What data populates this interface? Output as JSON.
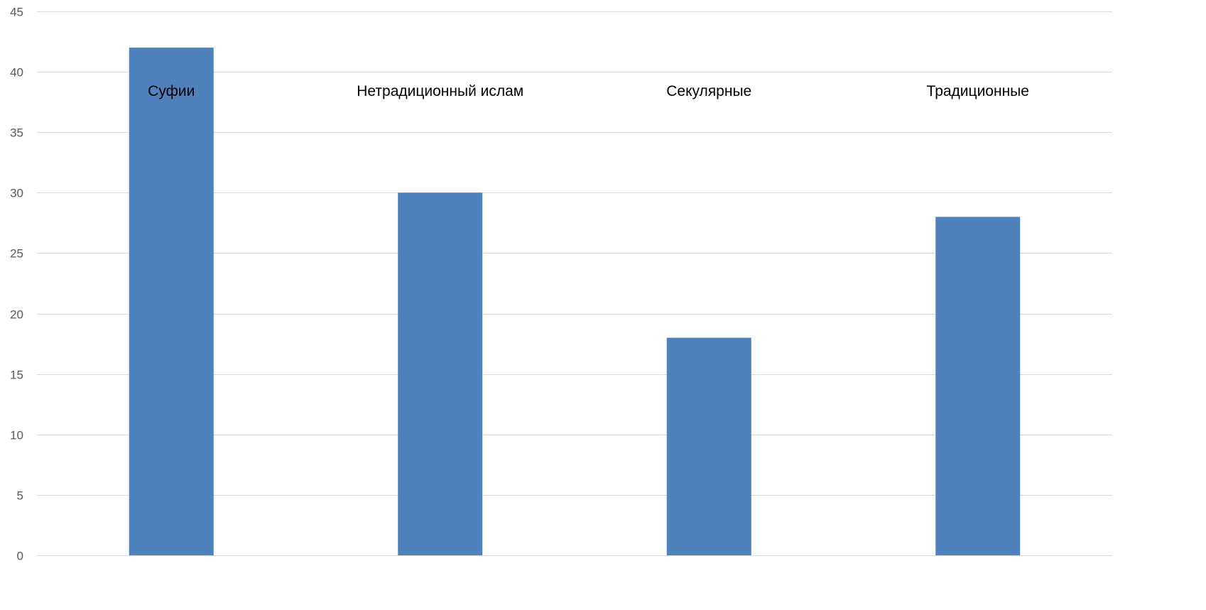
{
  "chart_data": {
    "type": "bar",
    "categories": [
      "Суфии",
      "Нетрадиционный ислам",
      "Секулярные",
      "Традиционные"
    ],
    "values": [
      42,
      30,
      18,
      28
    ],
    "title": "",
    "xlabel": "",
    "ylabel": "",
    "ylim": [
      0,
      45
    ],
    "yticks": [
      0,
      5,
      10,
      15,
      20,
      25,
      30,
      35,
      40,
      45
    ],
    "grid": true,
    "legend": "none",
    "bar_color": "#4f81bd",
    "grid_color": "#d9d9d9",
    "tick_label_color": "#595959",
    "category_label_color": "#000000",
    "category_label_position": "top-inside-plot"
  }
}
